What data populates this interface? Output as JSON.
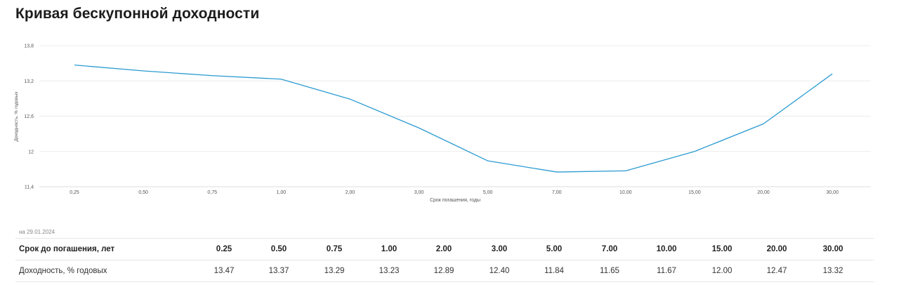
{
  "title": "Кривая бескупонной доходности",
  "date_note": "на 29.01.2024",
  "colors": {
    "line": "#2b9bd1",
    "grid": "#ececec"
  },
  "chart_data": {
    "type": "line",
    "title": "",
    "xlabel": "Срок погашения, годы",
    "ylabel": "Доходность, % годовых",
    "categories": [
      "0,25",
      "0,50",
      "0,75",
      "1,00",
      "2,00",
      "3,00",
      "5,00",
      "7,00",
      "10,00",
      "15,00",
      "20,00",
      "30,00"
    ],
    "series": [
      {
        "values": [
          13.47,
          13.37,
          13.29,
          13.23,
          12.89,
          12.4,
          11.84,
          11.65,
          11.67,
          12.0,
          12.47,
          13.32
        ]
      }
    ],
    "ylim": [
      11.4,
      13.8
    ],
    "yticks": [
      11.4,
      12,
      12.6,
      13.2,
      13.8
    ],
    "ytick_labels": [
      "11,4",
      "12",
      "12,6",
      "13,2",
      "13,8"
    ],
    "grid": true
  },
  "table": {
    "header_label": "Срок до погашения, лет",
    "row_label": "Доходность, % годовых",
    "terms": [
      "0.25",
      "0.50",
      "0.75",
      "1.00",
      "2.00",
      "3.00",
      "5.00",
      "7.00",
      "10.00",
      "15.00",
      "20.00",
      "30.00"
    ],
    "yields": [
      "13.47",
      "13.37",
      "13.29",
      "13.23",
      "12.89",
      "12.40",
      "11.84",
      "11.65",
      "11.67",
      "12.00",
      "12.47",
      "13.32"
    ]
  }
}
